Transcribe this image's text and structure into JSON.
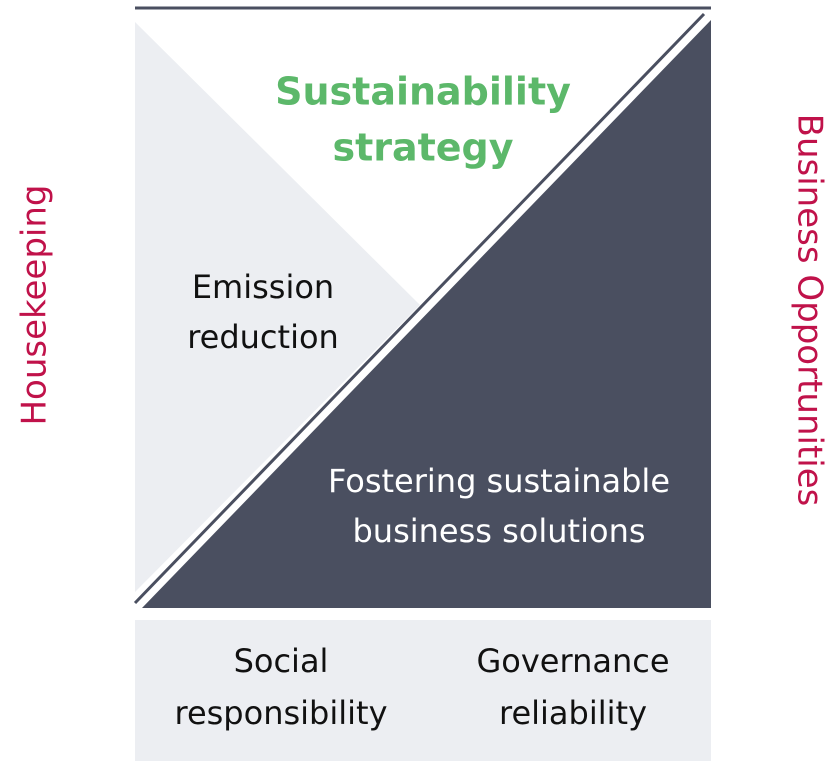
{
  "strategy": {
    "lines": [
      "Sustainability",
      "strategy"
    ]
  },
  "emission": {
    "lines": [
      "Emission",
      "reduction"
    ]
  },
  "fostering": {
    "lines": [
      "Fostering sustainable",
      "business solutions"
    ]
  },
  "social": {
    "lines": [
      "Social",
      "responsibility"
    ]
  },
  "governance": {
    "lines": [
      "Governance",
      "reliability"
    ]
  },
  "left_label": "Housekeeping",
  "right_label": "Business Opportunities"
}
